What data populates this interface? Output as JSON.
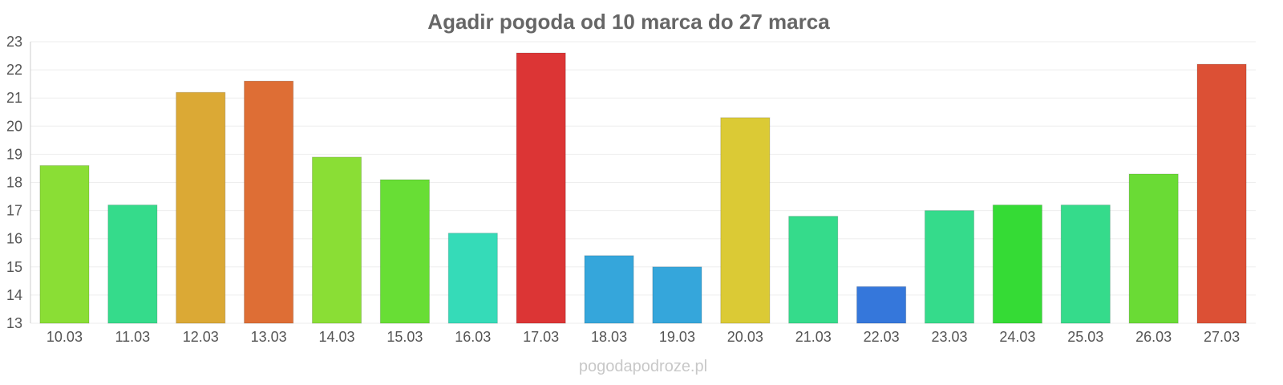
{
  "chart_data": {
    "type": "bar",
    "title": "Agadir pogoda od 10 marca do 27 marca",
    "xlabel": "",
    "ylabel": "",
    "categories": [
      "10.03",
      "11.03",
      "12.03",
      "13.03",
      "14.03",
      "15.03",
      "16.03",
      "17.03",
      "18.03",
      "19.03",
      "20.03",
      "21.03",
      "22.03",
      "23.03",
      "24.03",
      "25.03",
      "26.03",
      "27.03"
    ],
    "values": [
      18.6,
      17.2,
      21.2,
      21.6,
      18.9,
      18.1,
      16.2,
      22.6,
      15.4,
      15.0,
      20.3,
      16.8,
      14.3,
      17.0,
      17.2,
      17.2,
      18.3,
      22.2
    ],
    "colors": [
      "#8ade35",
      "#35db8b",
      "#dba935",
      "#de6e35",
      "#8ade35",
      "#68de35",
      "#35dbb8",
      "#dc3535",
      "#35a6db",
      "#35a6db",
      "#dbca35",
      "#35db8b",
      "#3577db",
      "#35db8b",
      "#35db35",
      "#35db8b",
      "#6adb35",
      "#dc5035"
    ],
    "yticks": [
      "13",
      "14",
      "15",
      "16",
      "17",
      "18",
      "19",
      "20",
      "21",
      "22",
      "23"
    ],
    "ylim": [
      13,
      23
    ],
    "grid": true,
    "legend": "none",
    "watermark": "pogodapodroze.pl"
  }
}
